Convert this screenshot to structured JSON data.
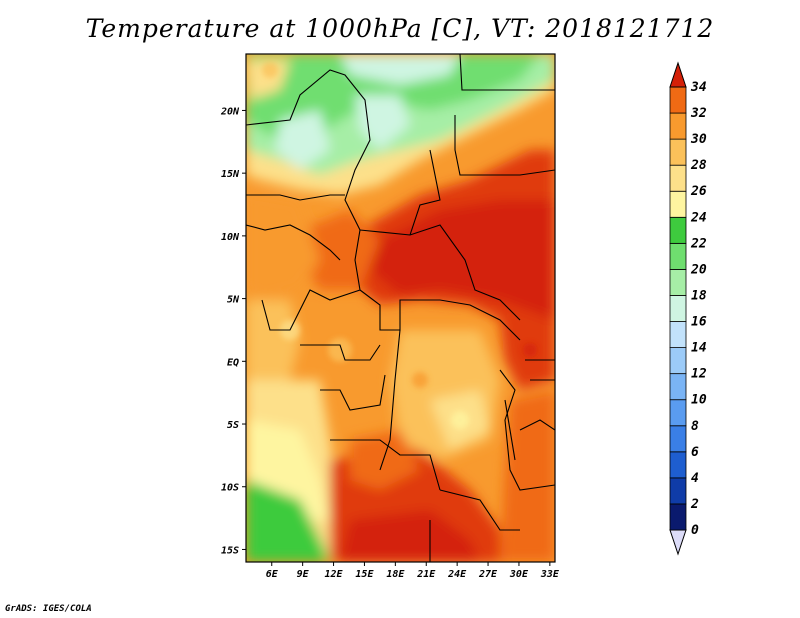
{
  "title": "Temperature at 1000hPa [C], VT: 2018121712",
  "footer": "GrADS: IGES/COLA",
  "map": {
    "lon_range": [
      3.5,
      33.5
    ],
    "lat_range": [
      -16,
      24.5
    ],
    "lon_ticks": [
      {
        "value": 6,
        "label": "6E"
      },
      {
        "value": 9,
        "label": "9E"
      },
      {
        "value": 12,
        "label": "12E"
      },
      {
        "value": 15,
        "label": "15E"
      },
      {
        "value": 18,
        "label": "18E"
      },
      {
        "value": 21,
        "label": "21E"
      },
      {
        "value": 24,
        "label": "24E"
      },
      {
        "value": 27,
        "label": "27E"
      },
      {
        "value": 30,
        "label": "30E"
      },
      {
        "value": 33,
        "label": "33E"
      }
    ],
    "lat_ticks": [
      {
        "value": 20,
        "label": "20N"
      },
      {
        "value": 15,
        "label": "15N"
      },
      {
        "value": 10,
        "label": "10N"
      },
      {
        "value": 5,
        "label": "5N"
      },
      {
        "value": 0,
        "label": "EQ"
      },
      {
        "value": -5,
        "label": "5S"
      },
      {
        "value": -10,
        "label": "10S"
      },
      {
        "value": -15,
        "label": "15S"
      }
    ]
  },
  "colorbar": {
    "levels": [
      "0",
      "2",
      "4",
      "6",
      "8",
      "10",
      "12",
      "14",
      "16",
      "18",
      "20",
      "22",
      "24",
      "26",
      "28",
      "30",
      "32",
      "34"
    ],
    "colors": [
      "#0a1a6e",
      "#0f3ca8",
      "#1e5ed0",
      "#3a7fe6",
      "#5a9cf0",
      "#7ab4f5",
      "#9ccbf8",
      "#c2e2fb",
      "#cff5e2",
      "#a6eea6",
      "#6fde6f",
      "#3ecb3e",
      "#fef5a0",
      "#fde08a",
      "#fbc15a",
      "#f89a2e",
      "#f06a14",
      "#e03a08",
      "#d42008"
    ]
  }
}
